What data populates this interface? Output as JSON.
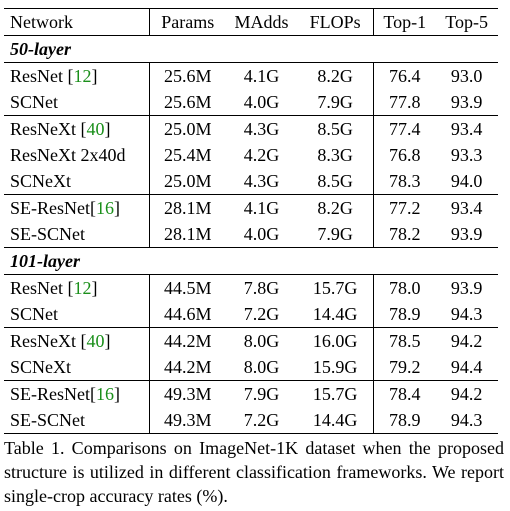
{
  "table": {
    "headers": [
      "Network",
      "Params",
      "MAdds",
      "FLOPs",
      "Top-1",
      "Top-5"
    ],
    "sections": [
      {
        "label": "50-layer",
        "groups": [
          [
            {
              "name": "ResNet ",
              "cite": "12",
              "params": "25.6M",
              "madds": "4.1G",
              "flops": "8.2G",
              "top1": "76.4",
              "top5": "93.0"
            },
            {
              "name": "SCNet",
              "cite": "",
              "params": "25.6M",
              "madds": "4.0G",
              "flops": "7.9G",
              "top1": "77.8",
              "top5": "93.9"
            }
          ],
          [
            {
              "name": "ResNeXt ",
              "cite": "40",
              "params": "25.0M",
              "madds": "4.3G",
              "flops": "8.5G",
              "top1": "77.4",
              "top5": "93.4"
            },
            {
              "name": "ResNeXt 2x40d",
              "cite": "",
              "params": "25.4M",
              "madds": "4.2G",
              "flops": "8.3G",
              "top1": "76.8",
              "top5": "93.3"
            },
            {
              "name": "SCNeXt",
              "cite": "",
              "params": "25.0M",
              "madds": "4.3G",
              "flops": "8.5G",
              "top1": "78.3",
              "top5": "94.0"
            }
          ],
          [
            {
              "name": "SE-ResNet",
              "cite": "16",
              "params": "28.1M",
              "madds": "4.1G",
              "flops": "8.2G",
              "top1": "77.2",
              "top5": "93.4"
            },
            {
              "name": "SE-SCNet",
              "cite": "",
              "params": "28.1M",
              "madds": "4.0G",
              "flops": "7.9G",
              "top1": "78.2",
              "top5": "93.9"
            }
          ]
        ]
      },
      {
        "label": "101-layer",
        "groups": [
          [
            {
              "name": "ResNet ",
              "cite": "12",
              "params": "44.5M",
              "madds": "7.8G",
              "flops": "15.7G",
              "top1": "78.0",
              "top5": "93.9"
            },
            {
              "name": "SCNet",
              "cite": "",
              "params": "44.6M",
              "madds": "7.2G",
              "flops": "14.4G",
              "top1": "78.9",
              "top5": "94.3"
            }
          ],
          [
            {
              "name": "ResNeXt ",
              "cite": "40",
              "params": "44.2M",
              "madds": "8.0G",
              "flops": "16.0G",
              "top1": "78.5",
              "top5": "94.2"
            },
            {
              "name": "SCNeXt",
              "cite": "",
              "params": "44.2M",
              "madds": "8.0G",
              "flops": "15.9G",
              "top1": "79.2",
              "top5": "94.4"
            }
          ],
          [
            {
              "name": "SE-ResNet",
              "cite": "16",
              "params": "49.3M",
              "madds": "7.9G",
              "flops": "15.7G",
              "top1": "78.4",
              "top5": "94.2"
            },
            {
              "name": "SE-SCNet",
              "cite": "",
              "params": "49.3M",
              "madds": "7.2G",
              "flops": "14.4G",
              "top1": "78.9",
              "top5": "94.3"
            }
          ]
        ]
      }
    ]
  },
  "caption": "Table 1. Comparisons on ImageNet-1K dataset when the proposed structure is utilized in different classification frameworks. We report single-crop accuracy rates (%)."
}
